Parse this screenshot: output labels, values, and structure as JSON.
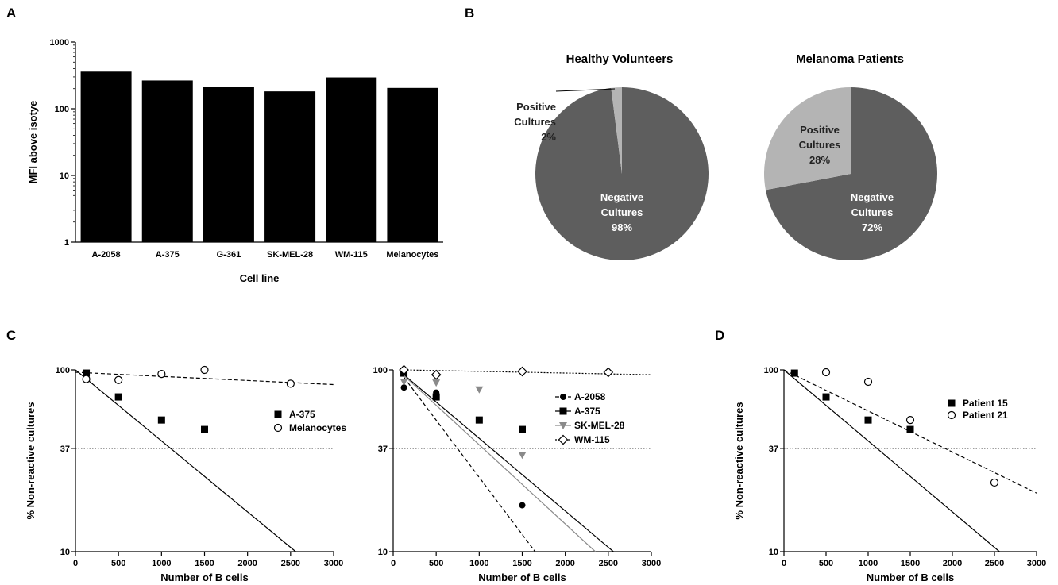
{
  "panel_letters": {
    "a": "A",
    "b": "B",
    "c": "C",
    "d": "D"
  },
  "colors": {
    "pie_dark": "#5e5e5e",
    "pie_light": "#b4b4b4",
    "gray_series": "#8a8a8a"
  },
  "chart_data": [
    {
      "id": "A",
      "type": "bar",
      "title": "",
      "xlabel": "Cell line",
      "ylabel": "MFI above isotye",
      "yscale": "log",
      "ylim": [
        1,
        1000
      ],
      "yticks": [
        "1",
        "10",
        "100",
        "1000"
      ],
      "categories": [
        "A-2058",
        "A-375",
        "G-361",
        "SK-MEL-28",
        "WM-115",
        "Melanocytes"
      ],
      "values": [
        360,
        265,
        215,
        182,
        295,
        205
      ],
      "grid": false
    },
    {
      "id": "B1",
      "type": "pie",
      "title": "Healthy Volunteers",
      "slices": [
        {
          "label_lines": [
            "Negative",
            "Cultures",
            "98%"
          ],
          "value": 98,
          "color": "#5e5e5e"
        },
        {
          "label_lines": [
            "Positive",
            "Cultures",
            "2%"
          ],
          "value": 2,
          "color": "#b4b4b4"
        }
      ]
    },
    {
      "id": "B2",
      "type": "pie",
      "title": "Melanoma Patients",
      "slices": [
        {
          "label_lines": [
            "Negative",
            "Cultures",
            "72%"
          ],
          "value": 72,
          "color": "#5e5e5e"
        },
        {
          "label_lines": [
            "Positive",
            "Cultures",
            "28%"
          ],
          "value": 28,
          "color": "#b4b4b4"
        }
      ]
    },
    {
      "id": "C1",
      "type": "scatter",
      "xlabel": "Number of B cells",
      "ylabel": "% Non-reactive cultures",
      "xlim": [
        0,
        3000
      ],
      "yscale": "log",
      "ylim": [
        10,
        100
      ],
      "xticks": [
        "0",
        "500",
        "1000",
        "1500",
        "2000",
        "2500",
        "3000"
      ],
      "yticks": [
        "10",
        "37",
        "100"
      ],
      "reference_y": 37,
      "legend_position": "right",
      "series": [
        {
          "name": "A-375",
          "marker": "square-filled",
          "color": "#000000",
          "x": [
            125,
            500,
            1000,
            1500
          ],
          "y": [
            96,
            71,
            53,
            47
          ],
          "fit": {
            "style": "solid",
            "x": [
              0,
              2560
            ],
            "y": [
              100,
              10
            ]
          }
        },
        {
          "name": "Melanocytes",
          "marker": "circle-open",
          "color": "#000000",
          "x": [
            125,
            500,
            1000,
            1500,
            2500
          ],
          "y": [
            89,
            88,
            95,
            100,
            84
          ],
          "fit": {
            "style": "dashed",
            "x": [
              0,
              3000
            ],
            "y": [
              97,
              83
            ]
          }
        }
      ]
    },
    {
      "id": "C2",
      "type": "scatter",
      "xlabel": "Number of B cells",
      "ylabel": "",
      "xlim": [
        0,
        3000
      ],
      "yscale": "log",
      "ylim": [
        10,
        100
      ],
      "xticks": [
        "0",
        "500",
        "1000",
        "1500",
        "2000",
        "2500",
        "3000"
      ],
      "yticks": [
        "10",
        "37",
        "100"
      ],
      "reference_y": 37,
      "legend_position": "right",
      "series": [
        {
          "name": "A-2058",
          "marker": "circle-filled",
          "color": "#000000",
          "x": [
            125,
            500,
            1500
          ],
          "y": [
            80,
            75,
            18
          ],
          "fit": {
            "style": "dashed",
            "x": [
              125,
              1650
            ],
            "y": [
              91,
              10
            ]
          }
        },
        {
          "name": "A-375",
          "marker": "square-filled",
          "color": "#000000",
          "x": [
            125,
            500,
            1000,
            1500
          ],
          "y": [
            96,
            71,
            53,
            47
          ],
          "fit": {
            "style": "solid",
            "x": [
              125,
              2560
            ],
            "y": [
              94,
              10
            ]
          }
        },
        {
          "name": "SK-MEL-28",
          "marker": "triangle-down-filled",
          "color": "#8a8a8a",
          "x": [
            125,
            500,
            1000,
            1500
          ],
          "y": [
            86,
            85,
            78,
            34
          ],
          "fit": {
            "style": "solid",
            "x": [
              125,
              2350
            ],
            "y": [
              93,
              10
            ]
          }
        },
        {
          "name": "WM-115",
          "marker": "diamond-open",
          "color": "#000000",
          "x": [
            125,
            500,
            1500,
            2500
          ],
          "y": [
            100,
            94,
            98,
            97
          ],
          "fit": {
            "style": "dotted",
            "x": [
              125,
              3000
            ],
            "y": [
              100,
              94
            ]
          }
        }
      ]
    },
    {
      "id": "D",
      "type": "scatter",
      "xlabel": "Number of B cells",
      "ylabel": "% Non-reactive cultures",
      "xlim": [
        0,
        3000
      ],
      "yscale": "log",
      "ylim": [
        10,
        100
      ],
      "xticks": [
        "0",
        "500",
        "1000",
        "1500",
        "2000",
        "2500",
        "3000"
      ],
      "yticks": [
        "10",
        "37",
        "100"
      ],
      "reference_y": 37,
      "legend_position": "right",
      "series": [
        {
          "name": "Patient 15",
          "marker": "square-filled",
          "color": "#000000",
          "x": [
            125,
            500,
            1000,
            1500
          ],
          "y": [
            96,
            71,
            53,
            47
          ],
          "fit": {
            "style": "solid",
            "x": [
              0,
              2560
            ],
            "y": [
              100,
              10
            ]
          }
        },
        {
          "name": "Patient 21",
          "marker": "circle-open",
          "color": "#000000",
          "x": [
            500,
            1000,
            1500,
            2500
          ],
          "y": [
            97,
            86,
            53,
            24
          ],
          "fit": {
            "style": "dashed",
            "x": [
              0,
              3000
            ],
            "y": [
              100,
              21
            ]
          }
        }
      ]
    }
  ]
}
